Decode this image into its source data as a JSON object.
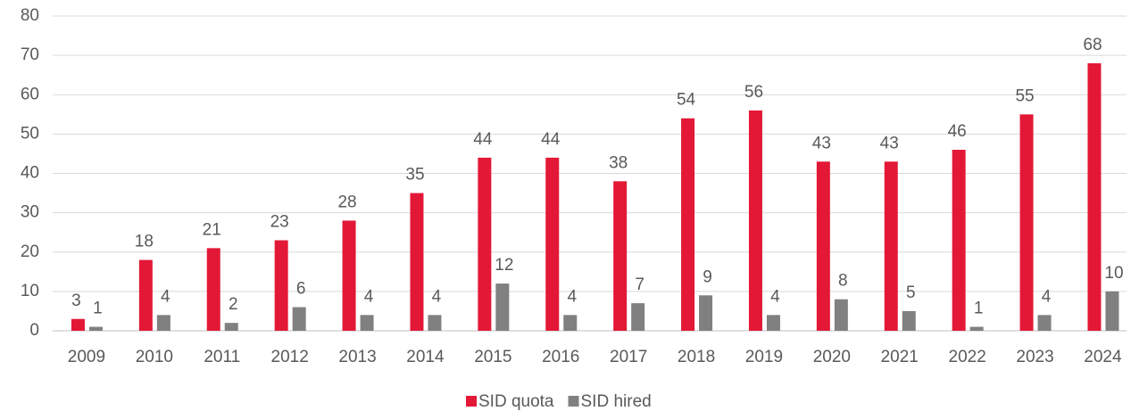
{
  "chart_data": {
    "type": "bar",
    "categories": [
      "2009",
      "2010",
      "2011",
      "2012",
      "2013",
      "2014",
      "2015",
      "2016",
      "2017",
      "2018",
      "2019",
      "2020",
      "2021",
      "2022",
      "2023",
      "2024"
    ],
    "series": [
      {
        "name": "SID quota",
        "color": "#e31837",
        "values": [
          3,
          18,
          21,
          23,
          28,
          35,
          44,
          44,
          38,
          54,
          56,
          43,
          43,
          46,
          55,
          68
        ]
      },
      {
        "name": "SID hired",
        "color": "#808080",
        "values": [
          1,
          4,
          2,
          6,
          4,
          4,
          12,
          4,
          7,
          9,
          4,
          8,
          5,
          1,
          4,
          10
        ]
      }
    ],
    "ylim": [
      0,
      80
    ],
    "yticks": [
      0,
      10,
      20,
      30,
      40,
      50,
      60,
      70,
      80
    ],
    "grid": true,
    "legend": "bottom"
  }
}
